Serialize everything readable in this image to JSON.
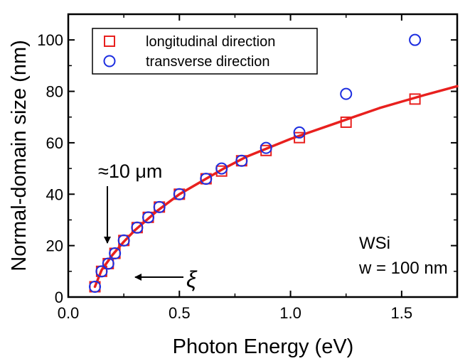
{
  "chart_data": {
    "type": "scatter",
    "xlabel": "Photon Energy (eV)",
    "ylabel": "Normal-domain size (nm)",
    "xlim": [
      0.0,
      1.75
    ],
    "ylim": [
      0,
      110
    ],
    "x_ticks": [
      "0.0",
      "0.5",
      "1.0",
      "1.5"
    ],
    "y_ticks": [
      "0",
      "20",
      "40",
      "60",
      "80",
      "100"
    ],
    "legend_position": "top-left",
    "grid": false,
    "series": [
      {
        "name": "longitudinal direction",
        "marker": "square",
        "color": "#e8201e",
        "x": [
          0.12,
          0.15,
          0.18,
          0.21,
          0.25,
          0.31,
          0.36,
          0.41,
          0.5,
          0.62,
          0.69,
          0.78,
          0.89,
          1.04,
          1.25,
          1.56
        ],
        "y": [
          4,
          10,
          13,
          17,
          22,
          27,
          31,
          35,
          40,
          46,
          49,
          53,
          57,
          62,
          68,
          77
        ]
      },
      {
        "name": "transverse direction",
        "marker": "circle",
        "color": "#1d2ee0",
        "x": [
          0.12,
          0.15,
          0.18,
          0.21,
          0.25,
          0.31,
          0.36,
          0.41,
          0.5,
          0.62,
          0.69,
          0.78,
          0.89,
          1.04,
          1.25,
          1.56
        ],
        "y": [
          4,
          10,
          13,
          17,
          22,
          27,
          31,
          35,
          40,
          46,
          50,
          53,
          58,
          64,
          79,
          100
        ]
      }
    ],
    "fit_curve": {
      "color": "#e8201e",
      "x": [
        0.12,
        0.15,
        0.2,
        0.25,
        0.3,
        0.4,
        0.5,
        0.6,
        0.7,
        0.8,
        0.9,
        1.0,
        1.1,
        1.2,
        1.3,
        1.4,
        1.5,
        1.6,
        1.75
      ],
      "y": [
        4,
        10.5,
        16.5,
        21.5,
        26,
        33.5,
        40,
        45,
        50,
        54.5,
        58,
        61.5,
        64.5,
        67.5,
        70.5,
        73.5,
        76,
        78.5,
        82
      ]
    },
    "annotations": {
      "length_label": "≈10 μm",
      "xi_symbol": "ξ",
      "material": "WSi",
      "width": "w = 100 nm"
    }
  }
}
